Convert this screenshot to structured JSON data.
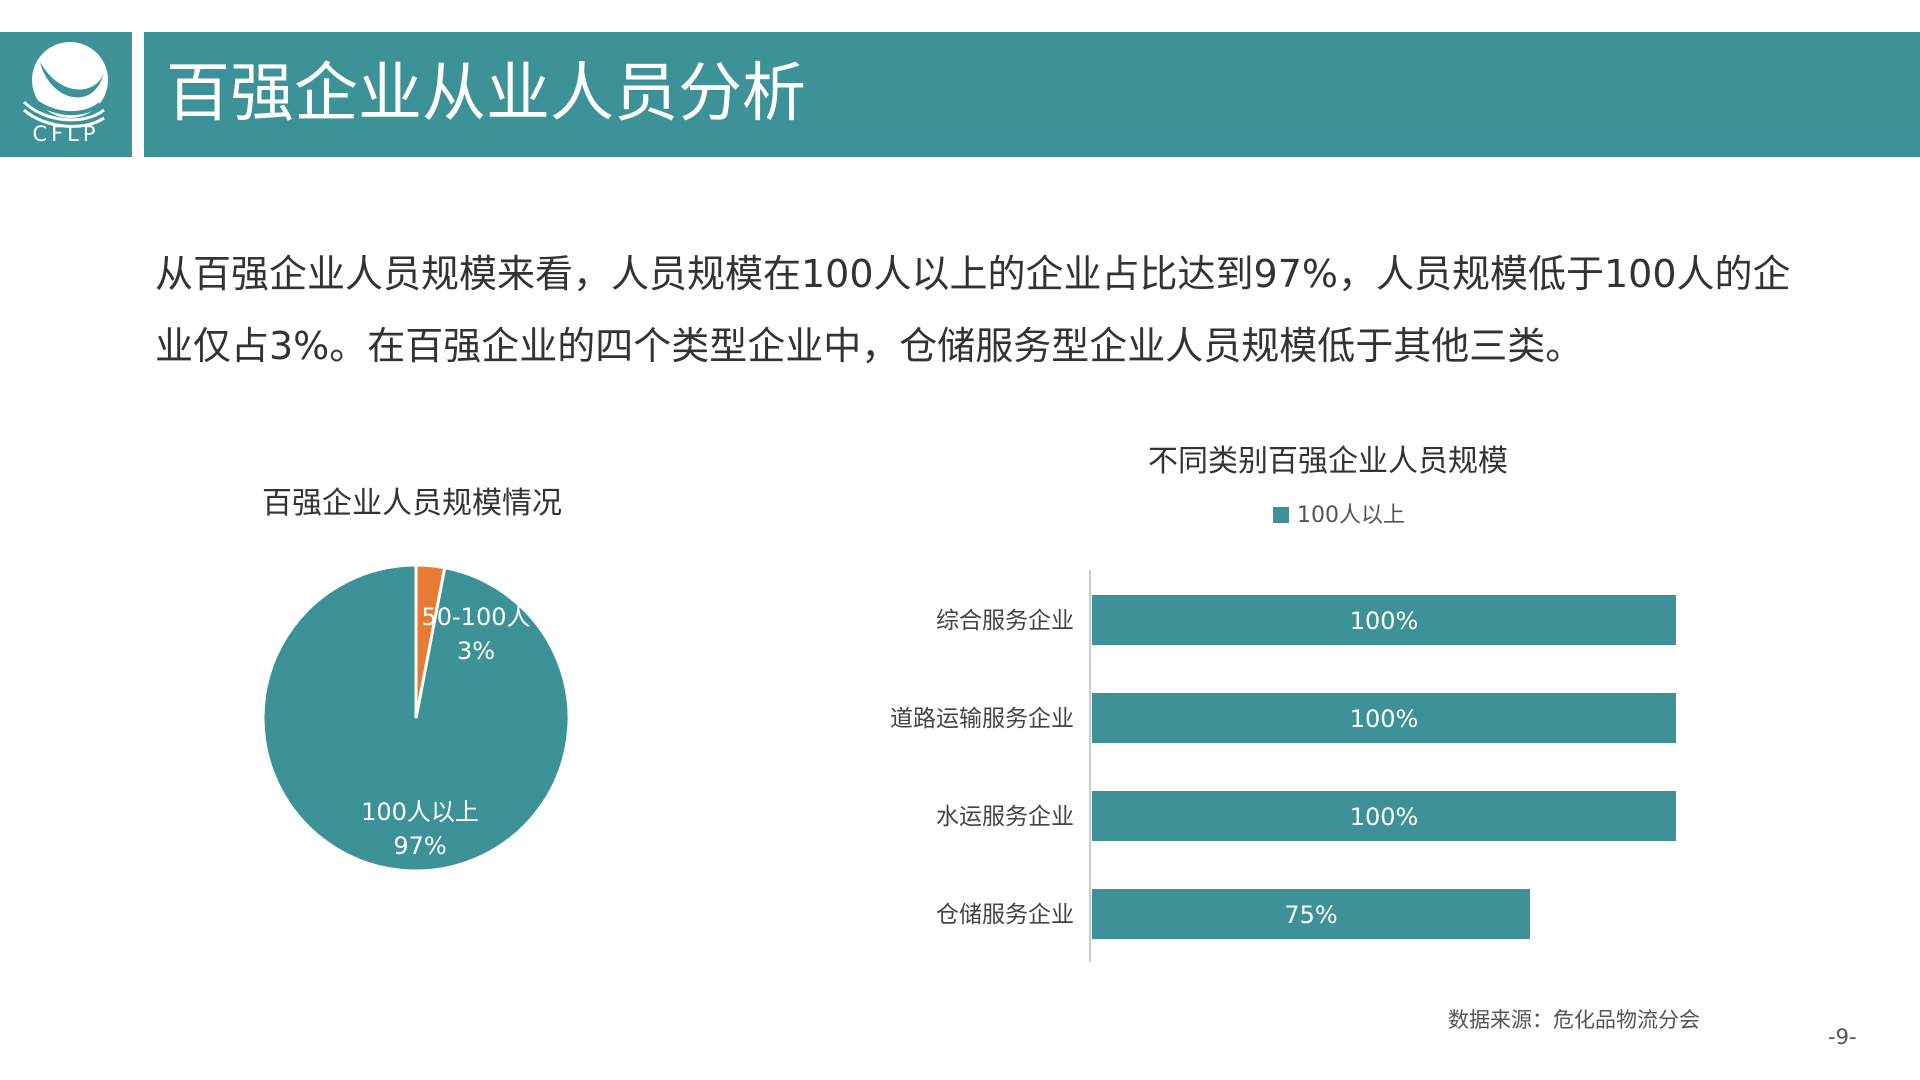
{
  "header": {
    "logo_text": "CFLP",
    "title": "百强企业从业人员分析"
  },
  "intro": {
    "text": "从百强企业人员规模来看，人员规模在100人以上的企业占比达到97%，人员规模低于100人的企业仅占3%。在百强企业的四个类型企业中，仓储服务型企业人员规模低于其他三类。"
  },
  "colors": {
    "teal": "#3c9297",
    "orange": "#e77b34"
  },
  "chart_data": [
    {
      "type": "pie",
      "title": "百强企业人员规模情况",
      "slices": [
        {
          "label": "100人以上",
          "value": 97,
          "value_label": "97%",
          "color": "#3c9297"
        },
        {
          "label": "50-100人",
          "value": 3,
          "value_label": "3%",
          "color": "#e77b34"
        }
      ]
    },
    {
      "type": "bar",
      "orientation": "horizontal",
      "title": "不同类别百强企业人员规模",
      "legend": {
        "position": "top",
        "entries": [
          {
            "name": "100人以上",
            "color": "#3c9297"
          }
        ]
      },
      "categories": [
        "综合服务企业",
        "道路运输服务企业",
        "水运服务企业",
        "仓储服务企业"
      ],
      "series": [
        {
          "name": "100人以上",
          "values": [
            100,
            100,
            100,
            75
          ],
          "value_labels": [
            "100%",
            "100%",
            "100%",
            "75%"
          ]
        }
      ],
      "xlim": [
        0,
        100
      ],
      "grid": false
    }
  ],
  "footer": {
    "source": "数据来源：危化品物流分会",
    "page": "-9-"
  }
}
